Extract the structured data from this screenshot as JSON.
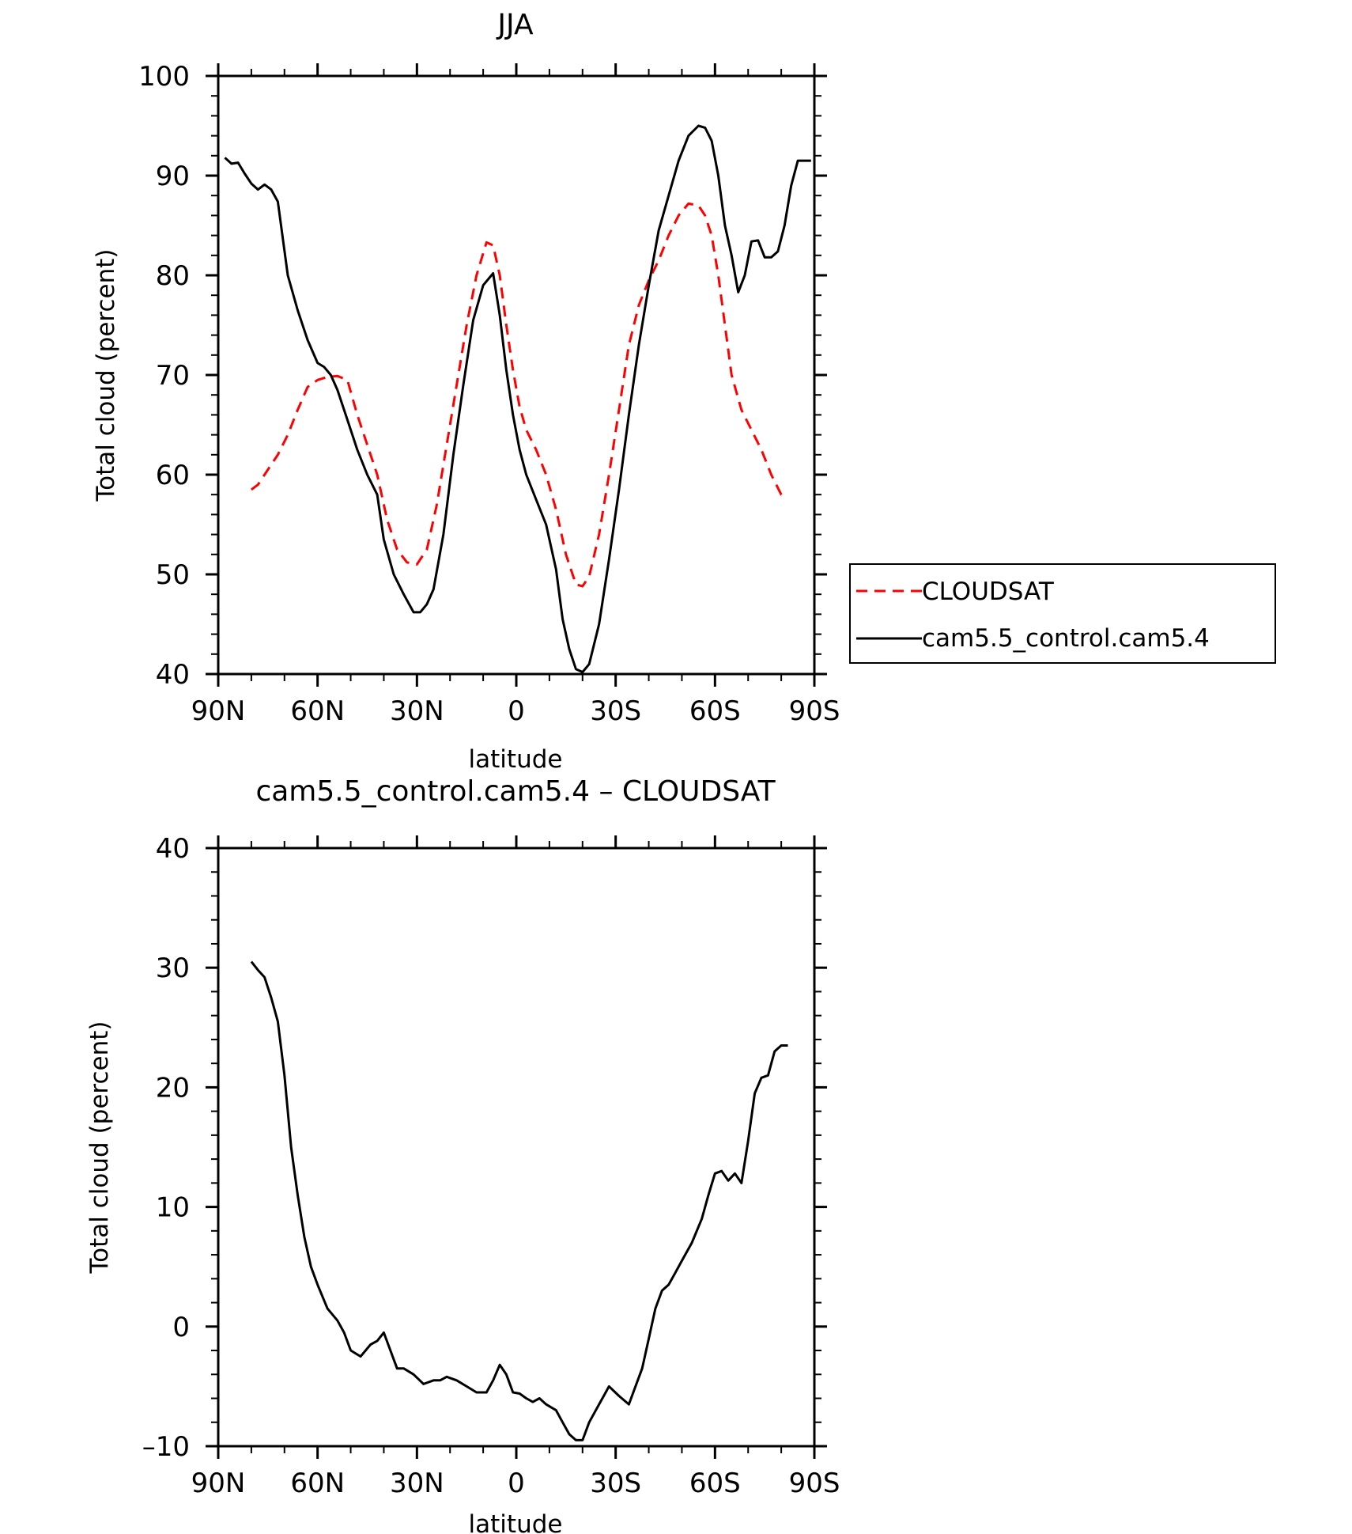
{
  "chart_data": [
    {
      "type": "line",
      "title": "JJA",
      "xlabel": "latitude",
      "ylabel": "Total cloud (percent)",
      "xlim": [
        90,
        -90
      ],
      "ylim": [
        40,
        100
      ],
      "xticks": [
        90,
        60,
        30,
        0,
        -30,
        -60,
        -90
      ],
      "xtick_labels": [
        "90N",
        "60N",
        "30N",
        "0",
        "30S",
        "60S",
        "90S"
      ],
      "yticks": [
        40,
        50,
        60,
        70,
        80,
        90,
        100
      ],
      "ytick_labels": [
        "40",
        "50",
        "60",
        "70",
        "80",
        "90",
        "100"
      ],
      "legend_position": "right",
      "series": [
        {
          "name": "CLOUDSAT",
          "color": "#ff0000",
          "dash": "dashed",
          "x": [
            80,
            78,
            75,
            72,
            69,
            66,
            63,
            60,
            57,
            54,
            51,
            48,
            45,
            42,
            39,
            36,
            33,
            30,
            27,
            24,
            21,
            18,
            15,
            12,
            9,
            7,
            5,
            3,
            1,
            -1,
            -3,
            -6,
            -9,
            -12,
            -15,
            -18,
            -20,
            -22,
            -25,
            -28,
            -31,
            -34,
            -37,
            -40,
            -43,
            -46,
            -49,
            -52,
            -55,
            -57,
            -59,
            -61,
            -63,
            -65,
            -68,
            -71,
            -74,
            -77,
            -80,
            -82
          ],
          "y": [
            58.5,
            59,
            60.5,
            62,
            64,
            66.5,
            68.8,
            69.5,
            69.8,
            69.9,
            69.5,
            66,
            63,
            60,
            55.5,
            52.5,
            51.2,
            51,
            52.5,
            57,
            63,
            69,
            75,
            80,
            83.3,
            83,
            80,
            75,
            70.5,
            66.8,
            64.5,
            62.5,
            60,
            56.5,
            52,
            49,
            48.8,
            49.8,
            54,
            60,
            66.5,
            73,
            77,
            79.5,
            81.5,
            84,
            86,
            87.2,
            87,
            86,
            84,
            80,
            75,
            70,
            66.5,
            64.5,
            62.5,
            60,
            58,
            58
          ]
        },
        {
          "name": "cam5.5_control.cam5.4",
          "color": "#000000",
          "dash": "solid",
          "x": [
            88,
            86,
            84,
            82,
            80,
            78,
            76,
            74,
            72,
            69,
            66,
            63,
            60,
            58,
            56,
            54,
            51,
            48,
            45,
            42,
            40,
            37,
            34,
            31,
            29,
            27,
            25,
            22,
            19,
            16,
            13,
            10,
            7,
            5,
            3,
            1,
            -1,
            -3,
            -6,
            -9,
            -12,
            -14,
            -16,
            -18,
            -20,
            -22,
            -25,
            -28,
            -31,
            -34,
            -37,
            -40,
            -43,
            -46,
            -49,
            -52,
            -55,
            -57,
            -59,
            -61,
            -63,
            -65,
            -67,
            -69,
            -71,
            -73,
            -75,
            -77,
            -79,
            -81,
            -83,
            -85,
            -87,
            -89
          ],
          "y": [
            91.8,
            91.2,
            91.3,
            90.2,
            89.2,
            88.6,
            89.1,
            88.6,
            87.4,
            80,
            76.5,
            73.5,
            71.2,
            70.8,
            70,
            68.5,
            65.5,
            62.5,
            60,
            58,
            53.5,
            50,
            48,
            46.2,
            46.2,
            47,
            48.5,
            54,
            62,
            69,
            75.5,
            79,
            80.2,
            76,
            70.5,
            66,
            62.5,
            60,
            57.5,
            55,
            50.5,
            45.5,
            42.5,
            40.5,
            40.2,
            41,
            45,
            51.5,
            58.5,
            66,
            73,
            79,
            84.5,
            88,
            91.5,
            94,
            95,
            94.8,
            93.5,
            90,
            85,
            82,
            78.3,
            80,
            83.4,
            83.5,
            81.8,
            81.8,
            82.4,
            85,
            89,
            91.5,
            91.5,
            91.5
          ]
        }
      ]
    },
    {
      "type": "line",
      "title": "cam5.5_control.cam5.4 – CLOUDSAT",
      "xlabel": "latitude",
      "ylabel": "Total cloud (percent)",
      "xlim": [
        90,
        -90
      ],
      "ylim": [
        -10,
        40
      ],
      "xticks": [
        90,
        60,
        30,
        0,
        -30,
        -60,
        -90
      ],
      "xtick_labels": [
        "90N",
        "60N",
        "30N",
        "0",
        "30S",
        "60S",
        "90S"
      ],
      "yticks": [
        -10,
        0,
        10,
        20,
        30,
        40
      ],
      "ytick_labels": [
        "–10",
        "0",
        "10",
        "20",
        "30",
        "40"
      ],
      "series": [
        {
          "color": "#000000",
          "dash": "solid",
          "x": [
            80,
            78,
            76,
            74,
            72,
            70,
            68,
            66,
            64,
            62,
            60,
            57,
            54,
            52,
            50,
            47,
            44,
            42,
            40,
            38,
            36,
            34,
            31,
            28,
            25,
            23,
            21,
            18,
            15,
            12,
            9,
            7,
            5,
            3,
            1,
            -1,
            -3,
            -5,
            -7,
            -9,
            -12,
            -14,
            -16,
            -18,
            -20,
            -22,
            -25,
            -28,
            -31,
            -34,
            -36,
            -38,
            -40,
            -42,
            -44,
            -46,
            -48,
            -50,
            -53,
            -56,
            -58,
            -60,
            -62,
            -64,
            -66,
            -68,
            -70,
            -72,
            -74,
            -76,
            -78,
            -80,
            -82
          ],
          "y": [
            30.5,
            29.8,
            29.2,
            27.5,
            25.5,
            21,
            15,
            11,
            7.5,
            5,
            3.5,
            1.5,
            0.5,
            -0.5,
            -2,
            -2.5,
            -1.5,
            -1.2,
            -0.5,
            -2,
            -3.5,
            -3.5,
            -4,
            -4.8,
            -4.5,
            -4.5,
            -4.2,
            -4.5,
            -5,
            -5.5,
            -5.5,
            -4.5,
            -3.2,
            -4,
            -5.5,
            -5.6,
            -6,
            -6.3,
            -6,
            -6.5,
            -7,
            -8,
            -9,
            -9.5,
            -9.5,
            -8,
            -6.5,
            -5,
            -5.8,
            -6.5,
            -5,
            -3.5,
            -1,
            1.5,
            3,
            3.5,
            4.5,
            5.5,
            7,
            9,
            11,
            12.8,
            13,
            12.2,
            12.8,
            12,
            15.5,
            19.5,
            20.8,
            21,
            23,
            23.5,
            23.5
          ]
        }
      ]
    }
  ]
}
